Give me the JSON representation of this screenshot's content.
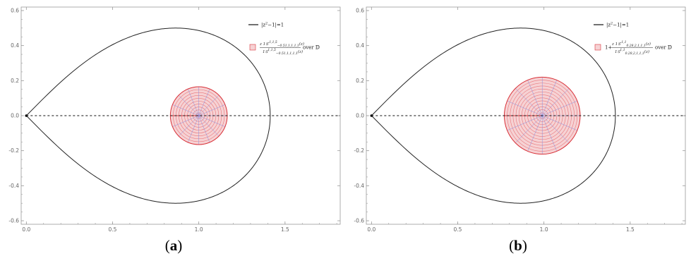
{
  "colors": {
    "curve": "#222222",
    "image_boundary": "#d9343b",
    "circles": "#e8767b",
    "rays": "#8a8fe0",
    "fill": "#f6d2d4",
    "axis": "#9a9a9a",
    "dashed": "#111111"
  },
  "chart_data": [
    {
      "type": "line",
      "panel": "a",
      "caption": {
        "open": "(",
        "letter": "a",
        "close": ")"
      },
      "xlim": [
        -0.03,
        1.82
      ],
      "ylim": [
        -0.62,
        0.62
      ],
      "x_ticks": [
        "0.0",
        "0.5",
        "1.0",
        "1.5"
      ],
      "x_tick_values": [
        0.0,
        0.5,
        1.0,
        1.5
      ],
      "y_ticks": [
        "0.6",
        "0.4",
        "0.2",
        "0.0",
        "-0.2",
        "-0.4",
        "-0.6"
      ],
      "y_tick_values": [
        0.6,
        0.4,
        0.2,
        0.0,
        -0.2,
        -0.4,
        -0.6
      ],
      "legend": {
        "curve_label": "|z²−1|=1",
        "curve_label_parts": {
          "base": "|z",
          "sup": "2",
          "rest": "−1|=1"
        },
        "region_numerator": "z 1𝒢′",
        "region_numerator_sup": "1,1,5",
        "region_numerator_sub": "−0.51,1,1,1,1",
        "region_numerator_tail": "(z)",
        "region_denominator": "1𝒢",
        "region_denominator_sup": "1,1,5",
        "region_denominator_sub": "−0.51,1,1,1,1",
        "region_denominator_tail": "(z)",
        "region_prefix": "",
        "region_suffix": "over 𝔻"
      },
      "lemniscate_point": [
        0,
        0
      ],
      "image_region": {
        "center": [
          1.0,
          0.0
        ],
        "radius": 0.165,
        "rings": 10,
        "rays": 16
      }
    },
    {
      "type": "line",
      "panel": "b",
      "caption": {
        "open": "(",
        "letter": "b",
        "close": ")"
      },
      "xlim": [
        -0.03,
        1.82
      ],
      "ylim": [
        -0.62,
        0.62
      ],
      "x_ticks": [
        "0.0",
        "0.5",
        "1.0",
        "1.5"
      ],
      "x_tick_values": [
        0.0,
        0.5,
        1.0,
        1.5
      ],
      "y_ticks": [
        "0.6",
        "0.4",
        "0.2",
        "0.0",
        "-0.2",
        "-0.4",
        "-0.6"
      ],
      "y_tick_values": [
        0.6,
        0.4,
        0.2,
        0.0,
        -0.2,
        -0.4,
        -0.6
      ],
      "legend": {
        "curve_label": "|z²−1|=1",
        "curve_label_parts": {
          "base": "|z",
          "sup": "2",
          "rest": "−1|=1"
        },
        "region_numerator": "z 1𝒢′",
        "region_numerator_sup": "1,1",
        "region_numerator_sub": "0.28,2,1,1,1",
        "region_numerator_tail": "(z)",
        "region_denominator": "1𝒢",
        "region_denominator_sup": "1,1",
        "region_denominator_sub": "0.28,2,1,1,1",
        "region_denominator_tail": "(z)",
        "region_prefix": "1+",
        "region_suffix": "over 𝔻"
      },
      "lemniscate_point": [
        0,
        0
      ],
      "image_region": {
        "center": [
          0.99,
          0.0
        ],
        "radius": 0.22,
        "rings": 13,
        "rays": 16
      }
    }
  ]
}
